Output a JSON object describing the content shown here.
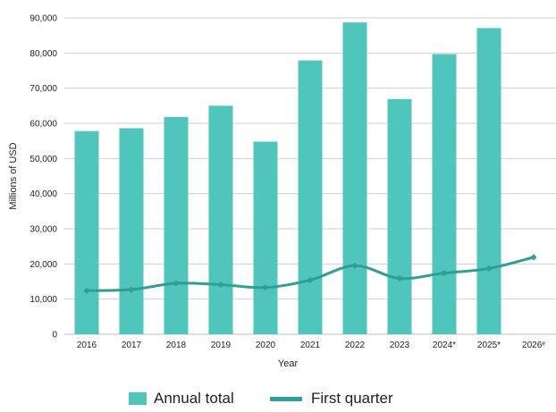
{
  "chart_data": {
    "type": "bar",
    "categories": [
      "2016",
      "2017",
      "2018",
      "2019",
      "2020",
      "2021",
      "2022",
      "2023",
      "2024*",
      "2025*",
      "2026ᵉ"
    ],
    "series": [
      {
        "name": "Annual total",
        "type": "bar",
        "color": "#4fc5bc",
        "values": [
          57800,
          58600,
          61800,
          65000,
          54800,
          77900,
          88700,
          66900,
          79700,
          87100,
          null
        ]
      },
      {
        "name": "First quarter",
        "type": "line",
        "color": "#2f9e95",
        "values": [
          12400,
          12700,
          14500,
          14100,
          13300,
          15400,
          19500,
          15900,
          17400,
          18700,
          21900
        ]
      }
    ],
    "xlabel": "Year",
    "ylabel": "Millions of USD",
    "ylim": [
      0,
      90000
    ],
    "yticks": [
      "0",
      "10,000",
      "20,000",
      "30,000",
      "40,000",
      "50,000",
      "60,000",
      "70,000",
      "80,000",
      "90,000"
    ],
    "grid": true,
    "legend_position": "bottom"
  }
}
